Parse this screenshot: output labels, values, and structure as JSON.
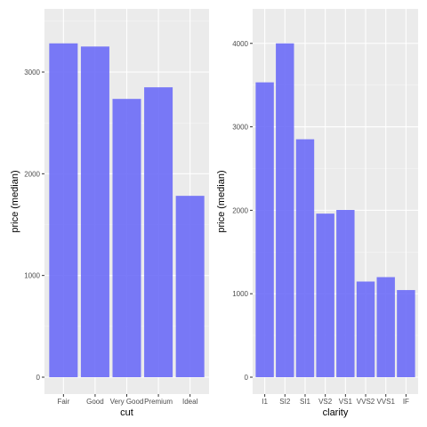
{
  "chart_data": [
    {
      "type": "bar",
      "categories": [
        "Fair",
        "Good",
        "Very Good",
        "Premium",
        "Ideal"
      ],
      "values": [
        3282,
        3251,
        2736,
        2850,
        1783
      ],
      "xlabel": "cut",
      "ylabel": "price (median)",
      "ylim": [
        0,
        3446
      ],
      "yticks": [
        0,
        1000,
        2000,
        3000
      ],
      "grid": true,
      "bar_color": "#6b6bf7"
    },
    {
      "type": "bar",
      "categories": [
        "I1",
        "SI2",
        "SI1",
        "VS2",
        "VS1",
        "VVS2",
        "VVS1",
        "IF"
      ],
      "values": [
        3533,
        4000,
        2851,
        1960,
        2004,
        1146,
        1199,
        1044
      ],
      "xlabel": "clarity",
      "ylabel": "price (median)",
      "ylim": [
        0,
        4200
      ],
      "yticks": [
        0,
        1000,
        2000,
        3000,
        4000
      ],
      "grid": true,
      "bar_color": "#6b6bf7"
    }
  ]
}
